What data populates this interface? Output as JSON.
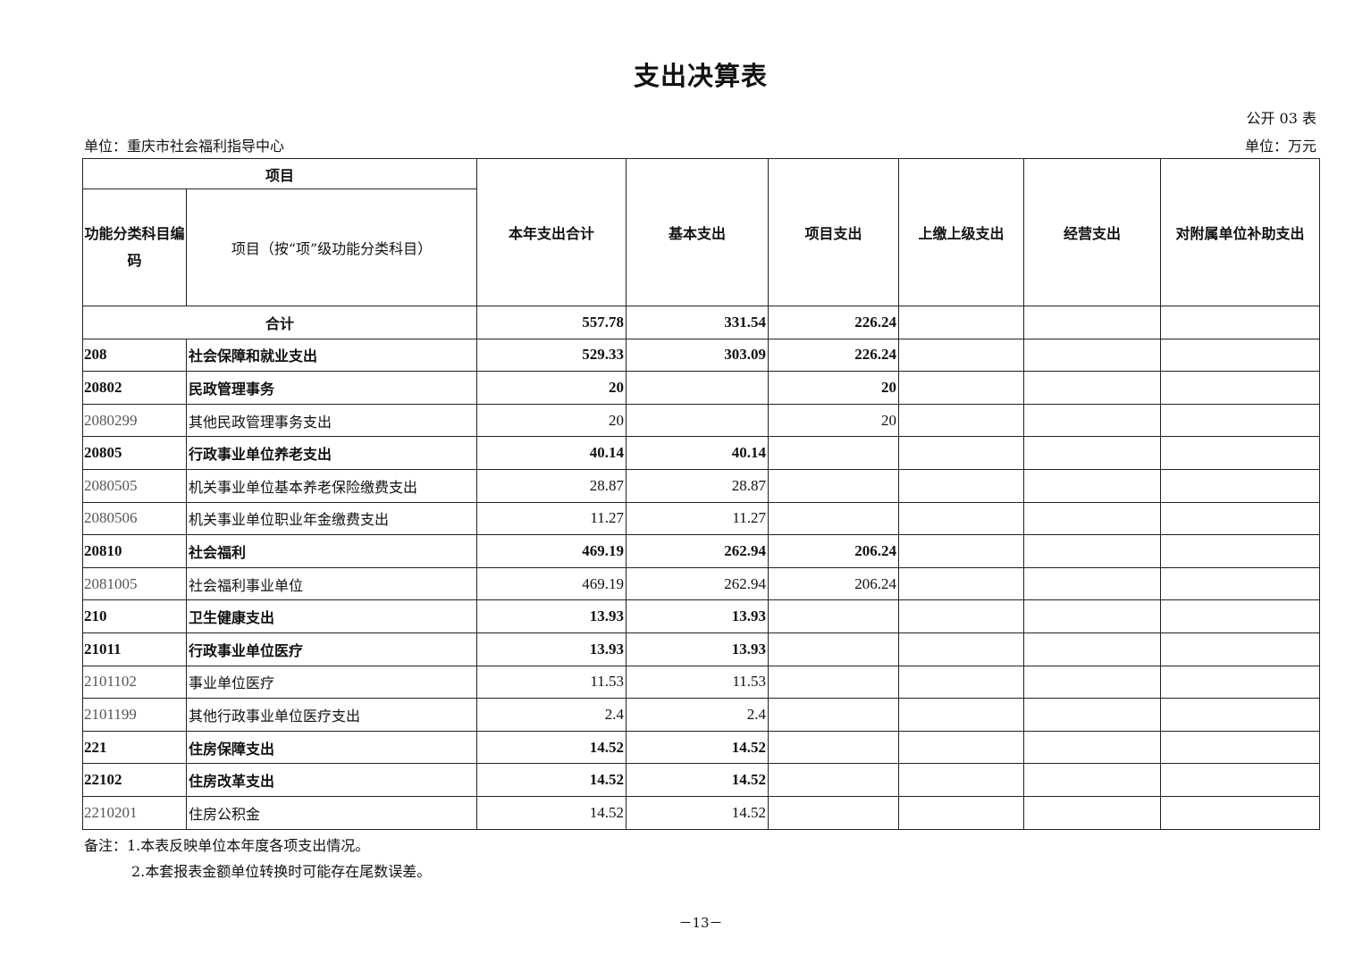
{
  "title": "支出决算表",
  "form_no": "公开 03 表",
  "unit_org": "单位：重庆市社会福利指导中心",
  "unit_currency": "单位：万元",
  "headers": {
    "item_group": "项目",
    "code": "功能分类科目编码",
    "item": "项目（按“项”级功能分类科目）",
    "total": "本年支出合计",
    "basic": "基本支出",
    "project": "项目支出",
    "superior": "上缴上级支出",
    "business": "经营支出",
    "subsidy": "对附属单位补助支出"
  },
  "total_row": {
    "label": "合计",
    "total": "557.78",
    "basic": "331.54",
    "project": "226.24",
    "superior": "",
    "business": "",
    "subsidy": ""
  },
  "rows": [
    {
      "code": "208",
      "name": "社会保障和就业支出",
      "total": "529.33",
      "basic": "303.09",
      "project": "226.24",
      "superior": "",
      "business": "",
      "subsidy": "",
      "bold": true
    },
    {
      "code": "20802",
      "name": "民政管理事务",
      "total": "20",
      "basic": "",
      "project": "20",
      "superior": "",
      "business": "",
      "subsidy": "",
      "bold": true
    },
    {
      "code": "2080299",
      "name": "其他民政管理事务支出",
      "total": "20",
      "basic": "",
      "project": "20",
      "superior": "",
      "business": "",
      "subsidy": "",
      "bold": false
    },
    {
      "code": "20805",
      "name": "行政事业单位养老支出",
      "total": "40.14",
      "basic": "40.14",
      "project": "",
      "superior": "",
      "business": "",
      "subsidy": "",
      "bold": true
    },
    {
      "code": "2080505",
      "name": "机关事业单位基本养老保险缴费支出",
      "total": "28.87",
      "basic": "28.87",
      "project": "",
      "superior": "",
      "business": "",
      "subsidy": "",
      "bold": false
    },
    {
      "code": "2080506",
      "name": "机关事业单位职业年金缴费支出",
      "total": "11.27",
      "basic": "11.27",
      "project": "",
      "superior": "",
      "business": "",
      "subsidy": "",
      "bold": false
    },
    {
      "code": "20810",
      "name": "社会福利",
      "total": "469.19",
      "basic": "262.94",
      "project": "206.24",
      "superior": "",
      "business": "",
      "subsidy": "",
      "bold": true
    },
    {
      "code": "2081005",
      "name": "社会福利事业单位",
      "total": "469.19",
      "basic": "262.94",
      "project": "206.24",
      "superior": "",
      "business": "",
      "subsidy": "",
      "bold": false
    },
    {
      "code": "210",
      "name": "卫生健康支出",
      "total": "13.93",
      "basic": "13.93",
      "project": "",
      "superior": "",
      "business": "",
      "subsidy": "",
      "bold": true
    },
    {
      "code": "21011",
      "name": "行政事业单位医疗",
      "total": "13.93",
      "basic": "13.93",
      "project": "",
      "superior": "",
      "business": "",
      "subsidy": "",
      "bold": true
    },
    {
      "code": "2101102",
      "name": "事业单位医疗",
      "total": "11.53",
      "basic": "11.53",
      "project": "",
      "superior": "",
      "business": "",
      "subsidy": "",
      "bold": false
    },
    {
      "code": "2101199",
      "name": "其他行政事业单位医疗支出",
      "total": "2.4",
      "basic": "2.4",
      "project": "",
      "superior": "",
      "business": "",
      "subsidy": "",
      "bold": false
    },
    {
      "code": "221",
      "name": "住房保障支出",
      "total": "14.52",
      "basic": "14.52",
      "project": "",
      "superior": "",
      "business": "",
      "subsidy": "",
      "bold": true
    },
    {
      "code": "22102",
      "name": "住房改革支出",
      "total": "14.52",
      "basic": "14.52",
      "project": "",
      "superior": "",
      "business": "",
      "subsidy": "",
      "bold": true
    },
    {
      "code": "2210201",
      "name": "住房公积金",
      "total": "14.52",
      "basic": "14.52",
      "project": "",
      "superior": "",
      "business": "",
      "subsidy": "",
      "bold": false
    }
  ],
  "notes": [
    "备注：1.本表反映单位本年度各项支出情况。",
    "2.本套报表金额单位转换时可能存在尾数误差。"
  ],
  "page_number": "－13－"
}
